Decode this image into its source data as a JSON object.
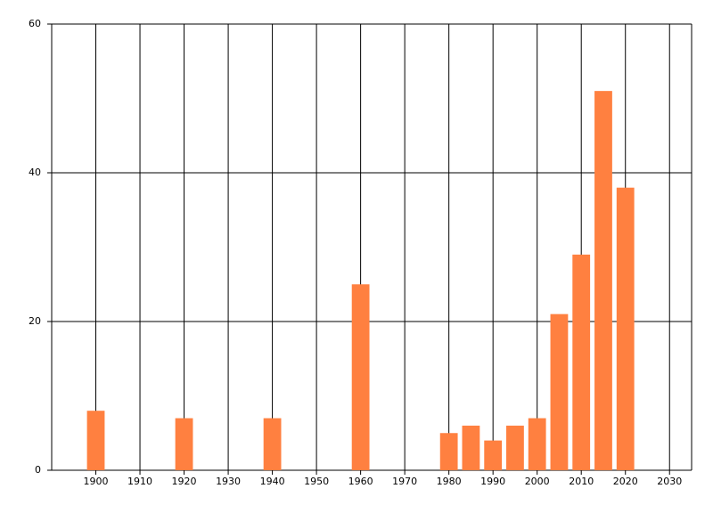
{
  "chart_data": {
    "type": "bar",
    "x": [
      1900,
      1920,
      1940,
      1960,
      1980,
      1985,
      1990,
      1995,
      2000,
      2005,
      2010,
      2015,
      2020
    ],
    "values": [
      8,
      7,
      7,
      25,
      5,
      6,
      4,
      6,
      7,
      21,
      29,
      51,
      38
    ],
    "color": "#ff8040",
    "xlim": [
      1890,
      2035
    ],
    "xticks": [
      1900,
      1910,
      1920,
      1930,
      1940,
      1950,
      1960,
      1970,
      1980,
      1990,
      2000,
      2010,
      2020,
      2030
    ],
    "ylim": [
      0,
      60
    ],
    "yticks": [
      0,
      20,
      40,
      60
    ],
    "grid": true
  }
}
